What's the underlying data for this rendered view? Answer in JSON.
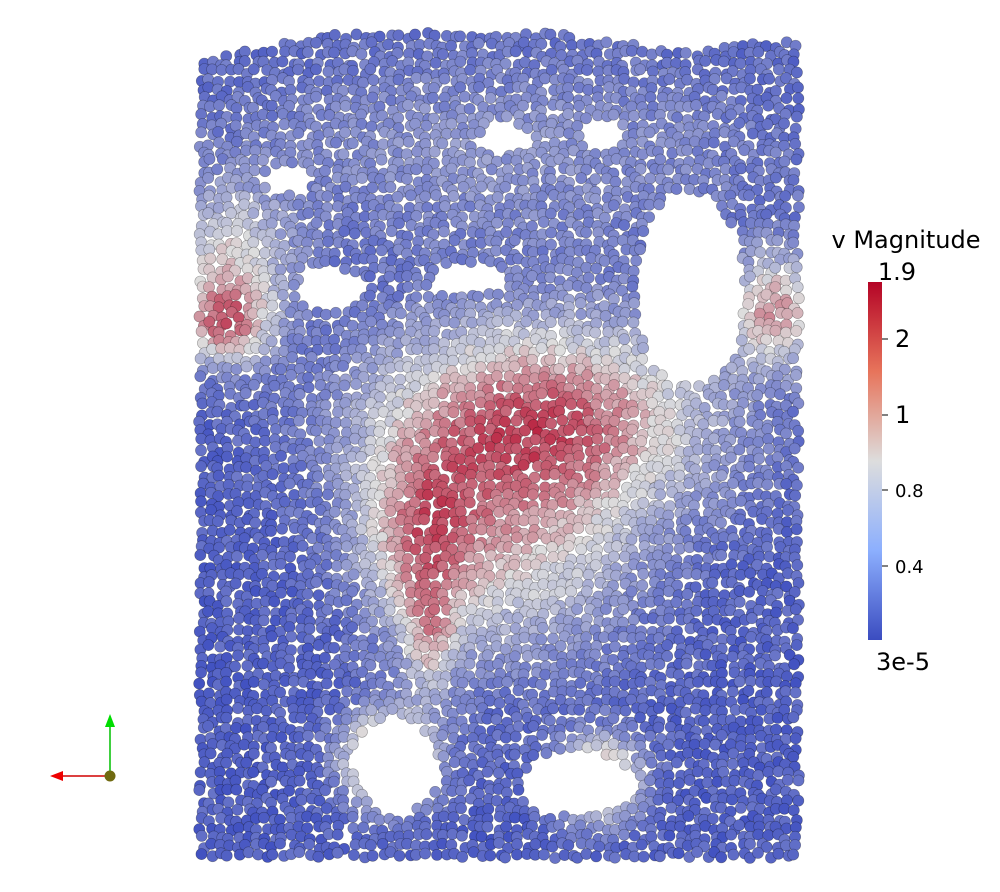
{
  "legend": {
    "title": "v Magnitude",
    "labels": [
      "1.9",
      "2",
      "1",
      "0.8",
      "0.4",
      "3e-5"
    ]
  }
}
